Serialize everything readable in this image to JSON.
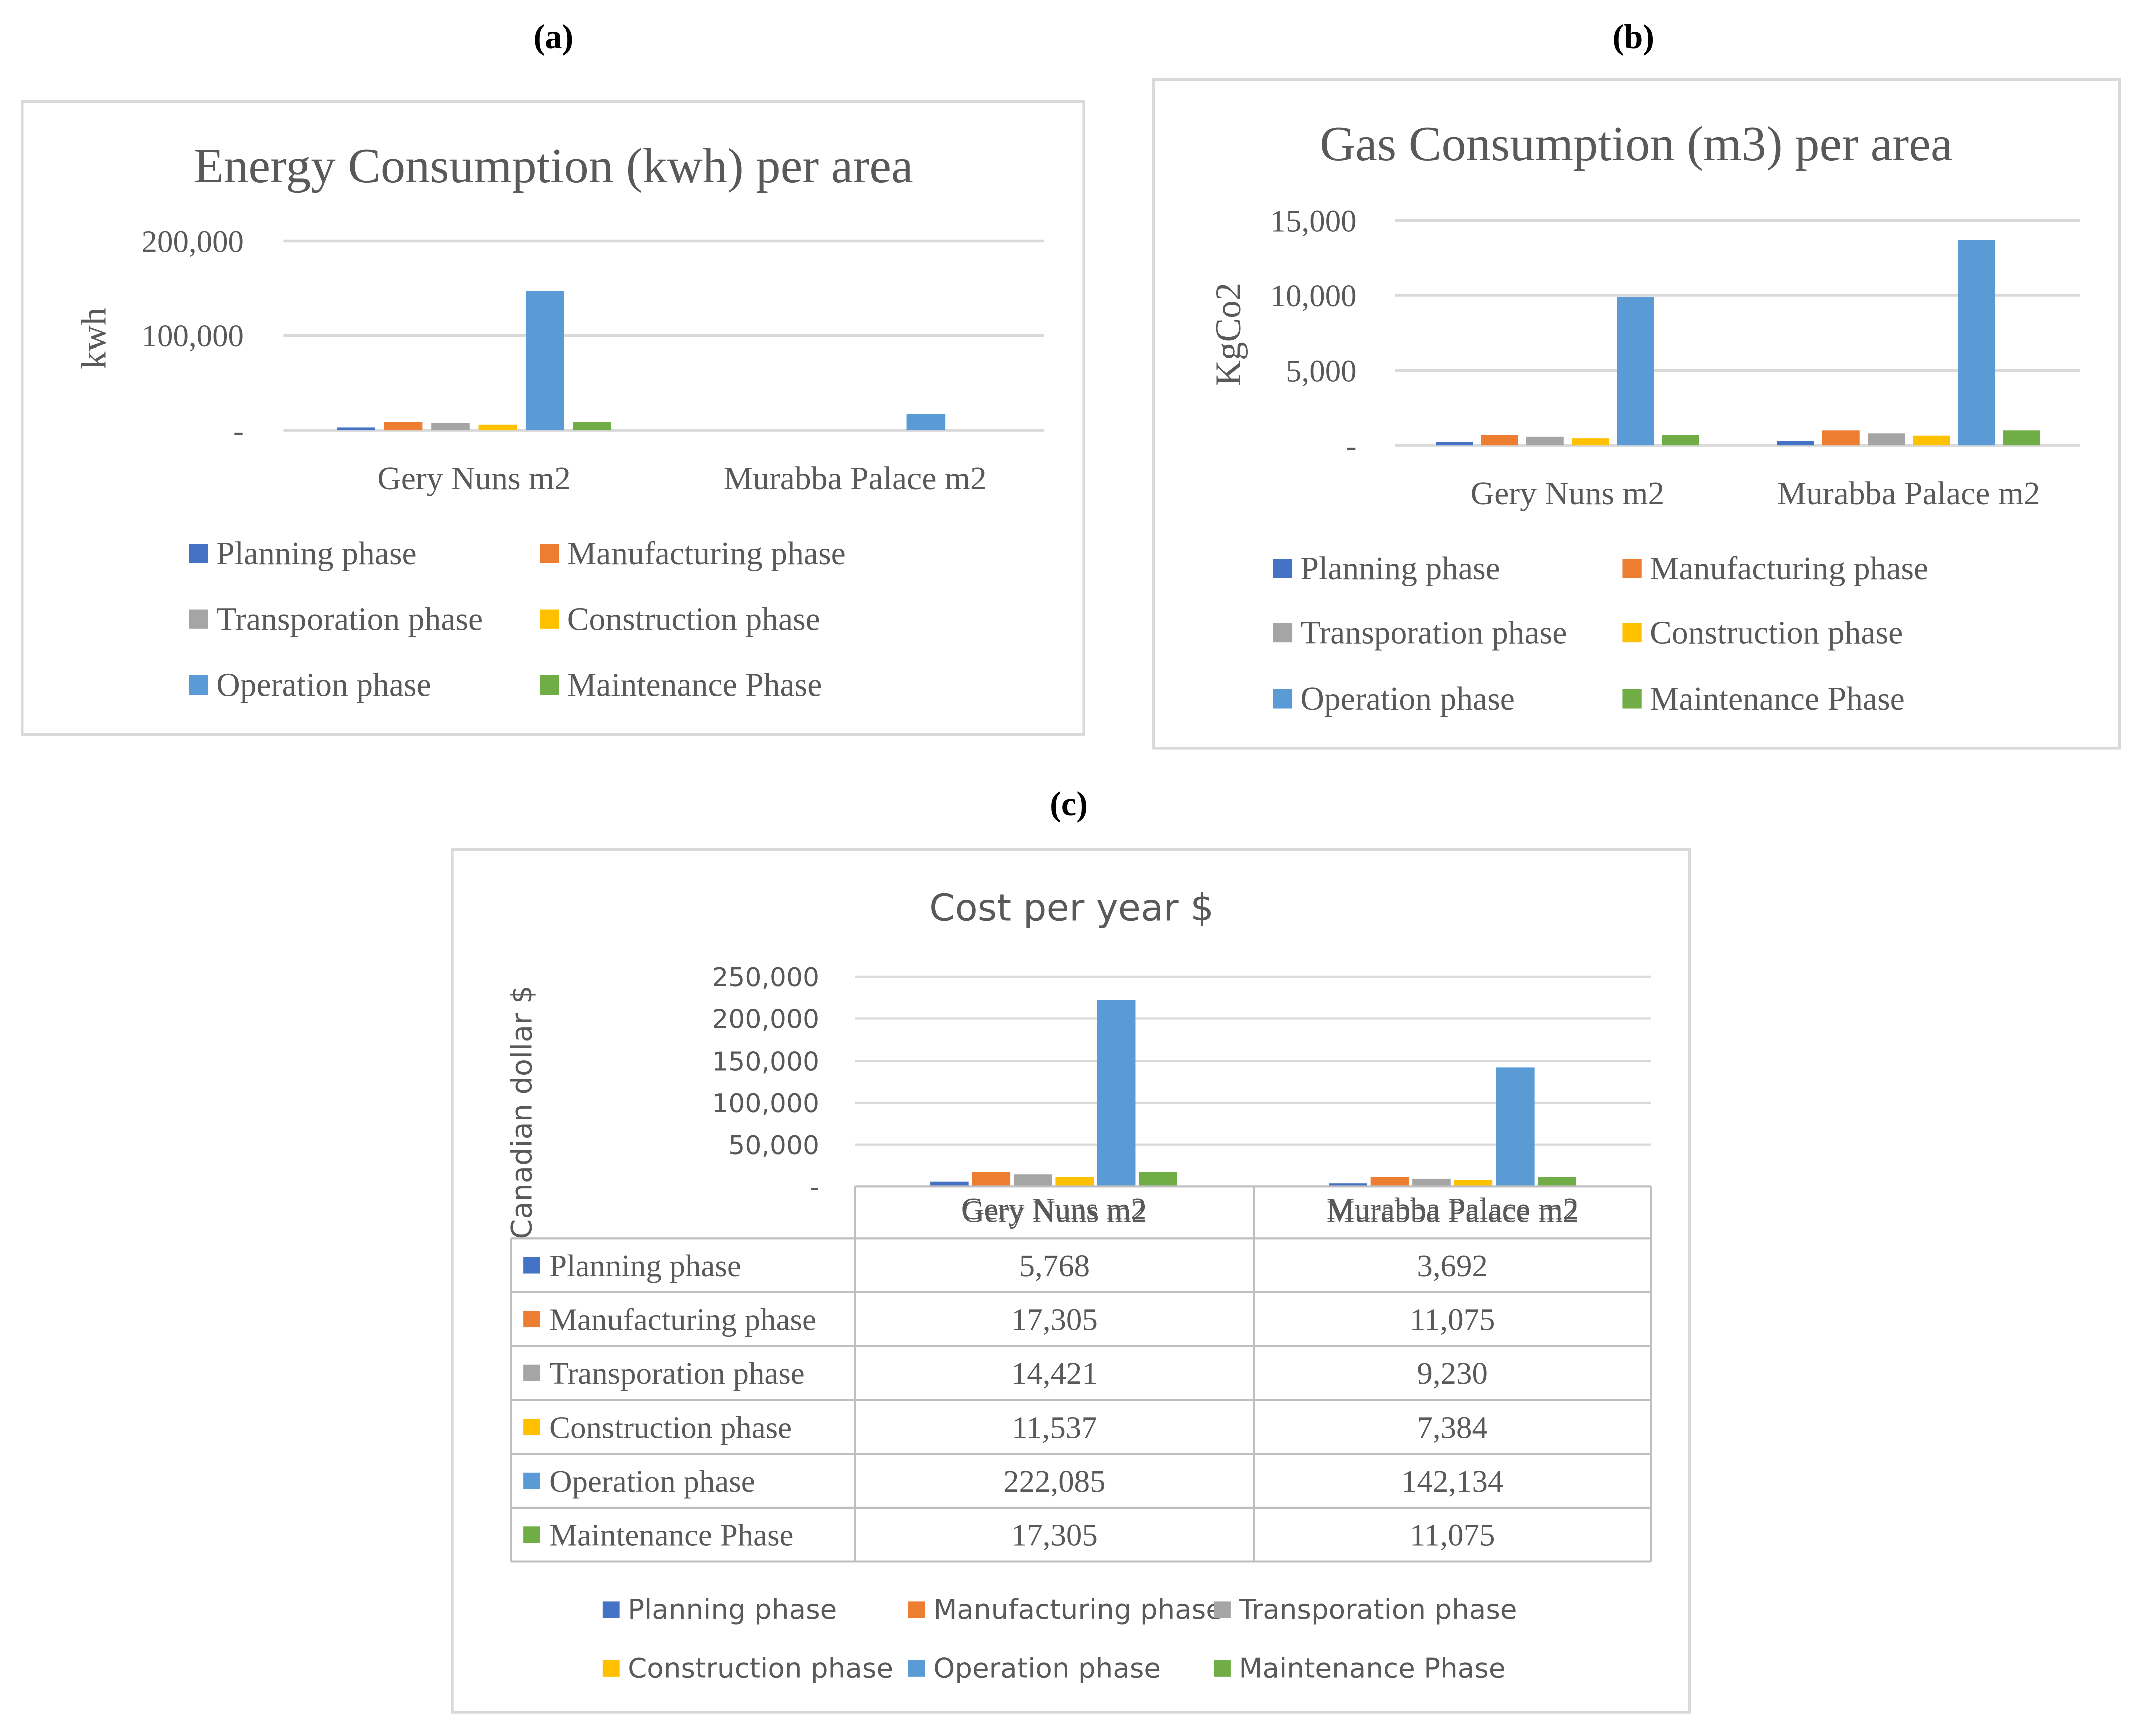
{
  "panel_labels": {
    "a": "(a)",
    "b": "(b)",
    "c": "(c)"
  },
  "series_colors": {
    "Planning phase": "#4472C4",
    "Manufacturing phase": "#ED7D31",
    "Transporation phase": "#A5A5A5",
    "Construction phase": "#FFC000",
    "Operation phase": "#5B9BD5",
    "Maintenance Phase": "#70AD47"
  },
  "chart_data": [
    {
      "id": "a",
      "type": "bar",
      "title": "Energy Consumption (kwh) per area",
      "ylabel": "kwh",
      "xlabel": "",
      "ylim": [
        0,
        200000
      ],
      "yticks": [
        "-",
        "100,000",
        "200,000"
      ],
      "grid": true,
      "legend_position": "bottom",
      "categories": [
        "Gery Nuns m2",
        "Murabba Palace m2"
      ],
      "series": [
        {
          "name": "Planning phase",
          "values": [
            3000,
            0
          ]
        },
        {
          "name": "Manufacturing phase",
          "values": [
            9000,
            0
          ]
        },
        {
          "name": "Transporation phase",
          "values": [
            7500,
            0
          ]
        },
        {
          "name": "Construction phase",
          "values": [
            6000,
            0
          ]
        },
        {
          "name": "Operation phase",
          "values": [
            147000,
            17000
          ]
        },
        {
          "name": "Maintenance Phase",
          "values": [
            9000,
            0
          ]
        }
      ]
    },
    {
      "id": "b",
      "type": "bar",
      "title": "Gas Consumption (m3) per area",
      "ylabel": "KgCo2",
      "xlabel": "",
      "ylim": [
        0,
        15000
      ],
      "yticks": [
        "-",
        "5,000",
        "10,000",
        "15,000"
      ],
      "grid": true,
      "legend_position": "bottom",
      "categories": [
        "Gery Nuns m2",
        "Murabba Palace m2"
      ],
      "series": [
        {
          "name": "Planning phase",
          "values": [
            220,
            300
          ]
        },
        {
          "name": "Manufacturing phase",
          "values": [
            700,
            1000
          ]
        },
        {
          "name": "Transporation phase",
          "values": [
            580,
            800
          ]
        },
        {
          "name": "Construction phase",
          "values": [
            470,
            650
          ]
        },
        {
          "name": "Operation phase",
          "values": [
            9900,
            13700
          ]
        },
        {
          "name": "Maintenance Phase",
          "values": [
            700,
            1000
          ]
        }
      ]
    },
    {
      "id": "c",
      "type": "bar",
      "title": "Cost per year $",
      "ylabel": "Canadian dollar $",
      "xlabel": "",
      "ylim": [
        0,
        250000
      ],
      "yticks": [
        "-",
        "50,000",
        "100,000",
        "150,000",
        "200,000",
        "250,000"
      ],
      "grid": true,
      "legend_position": "bottom",
      "categories": [
        "Gery Nuns m2",
        "Murabba Palace m2"
      ],
      "series": [
        {
          "name": "Planning phase",
          "values": [
            5768,
            3692
          ],
          "labels": [
            "5,768",
            "3,692"
          ]
        },
        {
          "name": "Manufacturing phase",
          "values": [
            17305,
            11075
          ],
          "labels": [
            "17,305",
            "11,075"
          ]
        },
        {
          "name": "Transporation phase",
          "values": [
            14421,
            9230
          ],
          "labels": [
            "14,421",
            "9,230"
          ]
        },
        {
          "name": "Construction phase",
          "values": [
            11537,
            7384
          ],
          "labels": [
            "11,537",
            "7,384"
          ]
        },
        {
          "name": "Operation phase",
          "values": [
            222085,
            142134
          ],
          "labels": [
            "222,085",
            "142,134"
          ]
        },
        {
          "name": "Maintenance Phase",
          "values": [
            17305,
            11075
          ],
          "labels": [
            "17,305",
            "11,075"
          ]
        }
      ]
    }
  ]
}
